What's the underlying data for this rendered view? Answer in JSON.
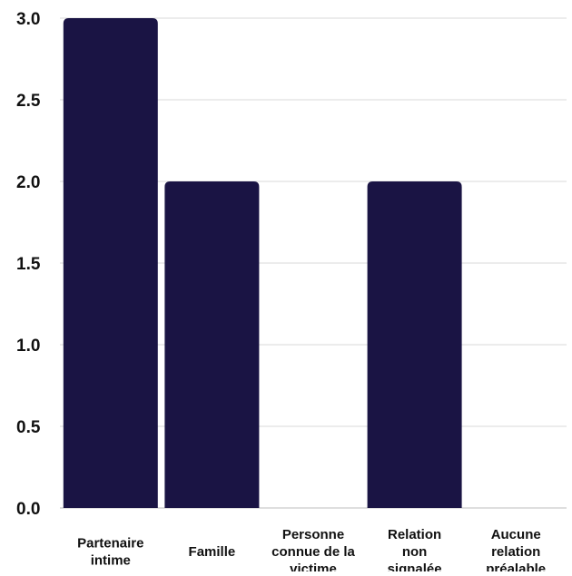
{
  "chart_data": {
    "type": "bar",
    "title": "",
    "xlabel": "",
    "ylabel": "",
    "categories": [
      [
        "Partenaire",
        "intime"
      ],
      [
        "Famille"
      ],
      [
        "Personne",
        "connue de la",
        "victime"
      ],
      [
        "Relation",
        "non",
        "signalée"
      ],
      [
        "Aucune",
        "relation",
        "préalable"
      ]
    ],
    "values": [
      3,
      2,
      0,
      2,
      0
    ],
    "ylim": [
      0,
      3
    ],
    "yticks": [
      "0.0",
      "0.5",
      "1.0",
      "1.5",
      "2.0",
      "2.5",
      "3.0"
    ],
    "grid": true,
    "bar_color": "#1a1444"
  }
}
